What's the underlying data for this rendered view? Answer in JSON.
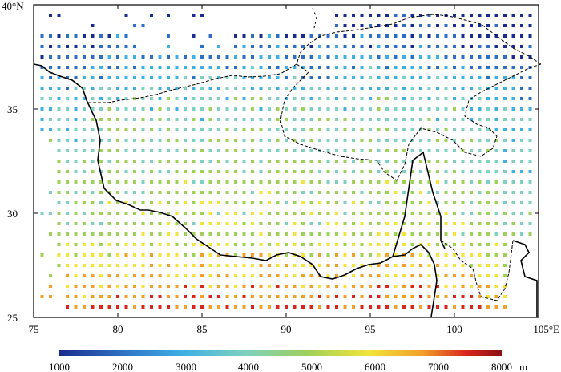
{
  "map": {
    "lon_range": [
      75,
      105
    ],
    "lat_range": [
      25,
      40
    ],
    "x_ticks": [
      "75",
      "80",
      "85",
      "90",
      "95",
      "100",
      "105°E"
    ],
    "y_ticks": [
      "25",
      "30",
      "35",
      "40°N"
    ],
    "grid_step_deg": 0.5,
    "features": [
      "grid-point-elevation-squares",
      "tibetan-plateau-boundary",
      "province-borders",
      "international-border"
    ]
  },
  "colorbar": {
    "labels": [
      "1000",
      "2000",
      "3000",
      "4000",
      "5000",
      "6000",
      "7000",
      "8000"
    ],
    "unit": "m",
    "min": 1000,
    "max": 8000,
    "colors": [
      "#1a2c8f",
      "#2e6fc4",
      "#3fb0e3",
      "#7ed0c0",
      "#9ed05a",
      "#f2e43a",
      "#f2a02a",
      "#d9261e",
      "#8b1014"
    ]
  },
  "chart_data": {
    "type": "heatmap",
    "description_of_values": "elevation at gridded stations (m)",
    "x_range": [
      75,
      105
    ],
    "y_range": [
      25,
      40
    ],
    "color_scale": [
      1000,
      8000
    ],
    "unit": "m"
  }
}
